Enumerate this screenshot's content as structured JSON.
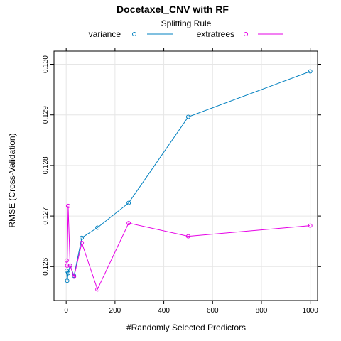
{
  "chart_data": {
    "type": "line",
    "title": "Docetaxel_CNV with RF",
    "xlabel": "#Randomly Selected Predictors",
    "ylabel": "RMSE (Cross-Validation)",
    "xlim": [
      -50,
      1030
    ],
    "ylim": [
      0.12533,
      0.13026
    ],
    "x_ticks": [
      0,
      200,
      400,
      600,
      800,
      1000
    ],
    "y_ticks": [
      0.126,
      0.127,
      0.128,
      0.129,
      0.13
    ],
    "y_tick_labels": [
      "0.126",
      "0.127",
      "0.128",
      "0.129",
      "0.130"
    ],
    "grid": true,
    "legend": {
      "title": "Splitting Rule",
      "position": "top"
    },
    "series": [
      {
        "name": "variance",
        "color": "#0080c0",
        "x": [
          2,
          4,
          8,
          16,
          32,
          64,
          128,
          256,
          500,
          1000
        ],
        "y": [
          0.12592,
          0.12572,
          0.12587,
          0.12602,
          0.12582,
          0.12657,
          0.12677,
          0.12726,
          0.12896,
          0.12986
        ]
      },
      {
        "name": "extratrees",
        "color": "#e600e6",
        "x": [
          2,
          4,
          8,
          16,
          32,
          64,
          128,
          256,
          500,
          1000
        ],
        "y": [
          0.12612,
          0.12602,
          0.1272,
          0.12602,
          0.1258,
          0.12647,
          0.12555,
          0.12686,
          0.1266,
          0.12681
        ]
      }
    ]
  }
}
